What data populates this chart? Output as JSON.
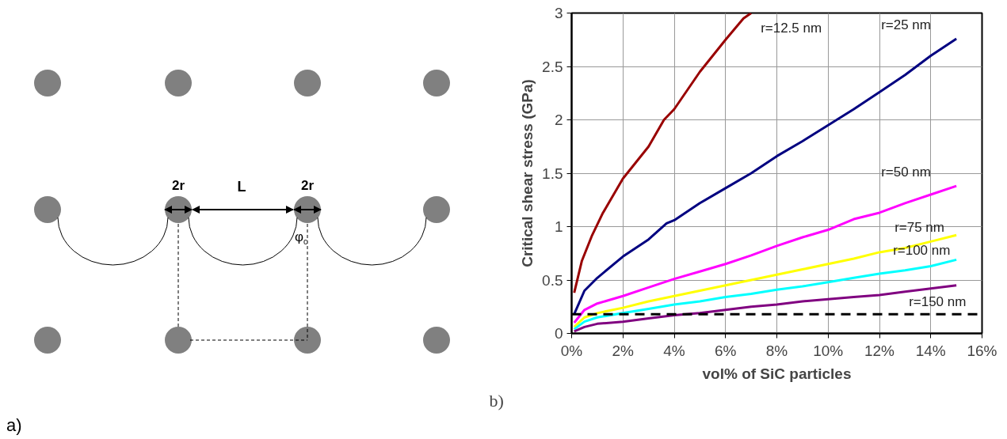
{
  "chart_data": [
    {
      "type": "other",
      "annotations": [
        "a)",
        "2r",
        "L",
        "2r",
        "φ$_{c}$"
      ]
    },
    {
      "type": "line",
      "xlabel": "vol% of SiC particles",
      "ylabel": "Critical shear stress (GPa)",
      "xlim": [
        0,
        16
      ],
      "ylim": [
        0,
        3
      ],
      "xticks": [
        {
          "value": 0,
          "label": "0%"
        },
        {
          "value": 2,
          "label": "2%"
        },
        {
          "value": 4,
          "label": "4%"
        },
        {
          "value": 6,
          "label": "6%"
        },
        {
          "value": 8,
          "label": "8%"
        },
        {
          "value": 10,
          "label": "10%"
        },
        {
          "value": 12,
          "label": "12%"
        },
        {
          "value": 14,
          "label": "14%"
        },
        {
          "value": 16,
          "label": "16%"
        }
      ],
      "yticks": [
        0,
        0.5,
        1,
        1.5,
        2,
        2.5,
        3
      ],
      "grid": true,
      "marker": "none",
      "line_style": "solid",
      "ref_lines": [
        {
          "axis": "y",
          "value": 0.18,
          "color": "#000000",
          "line_style": "dashed"
        }
      ],
      "annotations": [
        "b)"
      ],
      "series": [
        {
          "name": "r=12.5 nm",
          "color": "#990000",
          "x": [
            0.1,
            0.4,
            0.8,
            1.2,
            2,
            3,
            3.6,
            4,
            5,
            6,
            6.7,
            7.0
          ],
          "values": [
            0.38,
            0.68,
            0.92,
            1.12,
            1.45,
            1.75,
            2.0,
            2.1,
            2.45,
            2.75,
            2.95,
            3.0
          ]
        },
        {
          "name": "r=25 nm",
          "color": "#000080",
          "x": [
            0.1,
            0.5,
            1,
            2,
            3,
            3.7,
            4,
            5,
            6,
            7,
            8,
            9,
            10,
            11,
            12,
            13,
            14,
            15
          ],
          "values": [
            0.18,
            0.4,
            0.52,
            0.72,
            0.88,
            1.03,
            1.06,
            1.22,
            1.36,
            1.5,
            1.66,
            1.8,
            1.95,
            2.1,
            2.26,
            2.42,
            2.6,
            2.76
          ]
        },
        {
          "name": "r=50 nm",
          "color": "#ff00ff",
          "x": [
            0.1,
            0.5,
            1,
            2,
            3,
            4,
            5,
            6,
            7,
            8,
            9,
            10,
            11,
            12,
            13,
            14,
            15
          ],
          "values": [
            0.1,
            0.22,
            0.28,
            0.35,
            0.43,
            0.51,
            0.58,
            0.65,
            0.73,
            0.82,
            0.9,
            0.97,
            1.07,
            1.13,
            1.22,
            1.3,
            1.38
          ]
        },
        {
          "name": "r=75 nm",
          "color": "#ffff00",
          "x": [
            0.1,
            0.5,
            1,
            2,
            3,
            4,
            5,
            6,
            7,
            8,
            9,
            10,
            11,
            12,
            13,
            14,
            15
          ],
          "values": [
            0.06,
            0.15,
            0.19,
            0.24,
            0.3,
            0.35,
            0.4,
            0.45,
            0.5,
            0.55,
            0.6,
            0.65,
            0.7,
            0.76,
            0.8,
            0.86,
            0.92
          ]
        },
        {
          "name": "r=100 nm",
          "color": "#00ffff",
          "x": [
            0.1,
            0.5,
            1,
            2,
            3,
            4,
            5,
            6,
            7,
            8,
            9,
            10,
            11,
            12,
            13,
            14,
            15
          ],
          "values": [
            0.04,
            0.11,
            0.15,
            0.19,
            0.23,
            0.27,
            0.3,
            0.34,
            0.37,
            0.41,
            0.44,
            0.48,
            0.52,
            0.56,
            0.59,
            0.63,
            0.69
          ]
        },
        {
          "name": "r=150 nm",
          "color": "#800080",
          "x": [
            0.1,
            0.5,
            1,
            2,
            3,
            4,
            5,
            6,
            7,
            8,
            9,
            10,
            11,
            12,
            13,
            14,
            15
          ],
          "values": [
            0.02,
            0.06,
            0.09,
            0.11,
            0.14,
            0.17,
            0.19,
            0.22,
            0.25,
            0.27,
            0.3,
            0.32,
            0.34,
            0.36,
            0.39,
            0.42,
            0.45
          ]
        }
      ]
    }
  ]
}
